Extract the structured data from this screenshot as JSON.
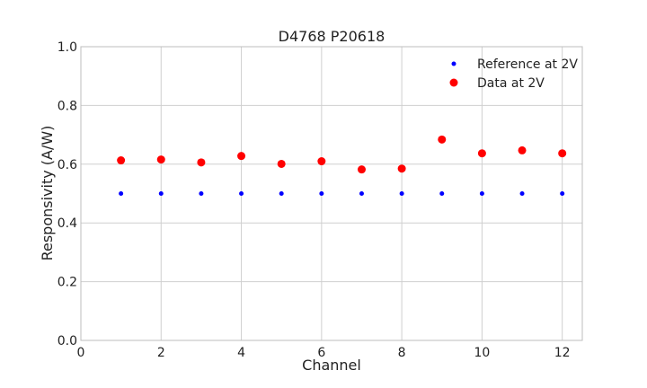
{
  "chart_data": {
    "type": "scatter",
    "title": "D4768 P20618",
    "xlabel": "Channel",
    "ylabel": "Responsivity (A/W)",
    "xlim": [
      0,
      12.5
    ],
    "ylim": [
      0.0,
      1.0
    ],
    "xticks": [
      0,
      2,
      4,
      6,
      8,
      10,
      12
    ],
    "xtick_labels": [
      "0",
      "2",
      "4",
      "6",
      "8",
      "10",
      "12"
    ],
    "yticks": [
      0.0,
      0.2,
      0.4,
      0.6,
      0.8,
      1.0
    ],
    "ytick_labels": [
      "0.0",
      "0.2",
      "0.4",
      "0.6",
      "0.8",
      "1.0"
    ],
    "grid": true,
    "legend_position": "top-right",
    "series": [
      {
        "name": "Reference at 2V",
        "color": "#0000ff",
        "marker": "small-dot",
        "x": [
          1,
          2,
          3,
          4,
          5,
          6,
          7,
          8,
          9,
          10,
          11,
          12
        ],
        "y": [
          0.5,
          0.5,
          0.5,
          0.5,
          0.5,
          0.5,
          0.5,
          0.5,
          0.5,
          0.5,
          0.5,
          0.5
        ]
      },
      {
        "name": "Data at 2V",
        "color": "#ff0000",
        "marker": "large-dot",
        "x": [
          1,
          2,
          3,
          4,
          5,
          6,
          7,
          8,
          9,
          10,
          11,
          12
        ],
        "y": [
          0.613,
          0.616,
          0.606,
          0.628,
          0.601,
          0.61,
          0.582,
          0.585,
          0.684,
          0.637,
          0.647,
          0.637
        ]
      }
    ]
  }
}
